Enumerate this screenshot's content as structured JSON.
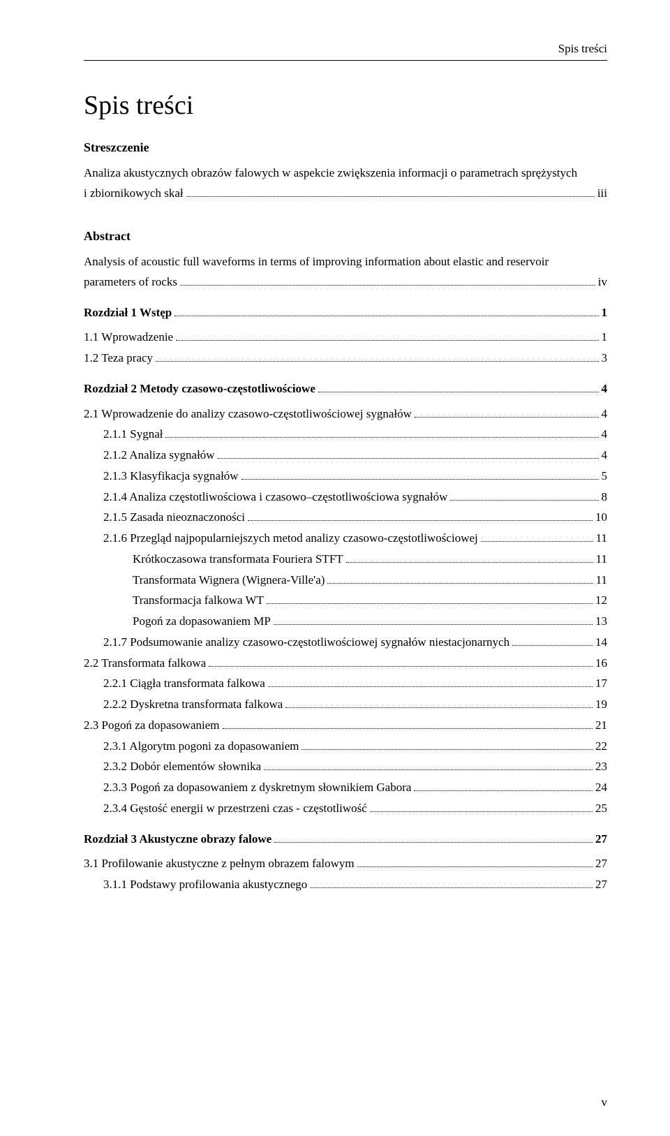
{
  "running_header": "Spis treści",
  "title": "Spis treści",
  "blocks": [
    {
      "type": "head",
      "text": "Streszczenie"
    },
    {
      "type": "para",
      "text": "Analiza akustycznych obrazów falowych w aspekcie zwiększenia informacji o parametrach sprężystych"
    },
    {
      "type": "toc",
      "indent": 0,
      "label": "i zbiornikowych skał",
      "page": "iii",
      "bold": false
    },
    {
      "type": "gap",
      "size": "med"
    },
    {
      "type": "head",
      "text": "Abstract"
    },
    {
      "type": "para",
      "text": "Analysis of acoustic full waveforms in terms of improving information about elastic and reservoir"
    },
    {
      "type": "toc",
      "indent": 0,
      "label": "parameters of rocks",
      "page": "iv",
      "bold": false
    },
    {
      "type": "gap",
      "size": "med"
    },
    {
      "type": "toc",
      "indent": 0,
      "label": "Rozdział 1 Wstęp",
      "page": "1",
      "bold": true
    },
    {
      "type": "gap",
      "size": "small"
    },
    {
      "type": "toc",
      "indent": 1,
      "label": "1.1  Wprowadzenie",
      "page": "1",
      "bold": false
    },
    {
      "type": "toc",
      "indent": 1,
      "label": "1.2  Teza pracy",
      "page": "3",
      "bold": false
    },
    {
      "type": "gap",
      "size": "med"
    },
    {
      "type": "toc",
      "indent": 0,
      "label": "Rozdział 2 Metody czasowo-częstotliwościowe",
      "page": "4",
      "bold": true
    },
    {
      "type": "gap",
      "size": "small"
    },
    {
      "type": "toc",
      "indent": 1,
      "label": "2.1  Wprowadzenie do analizy czasowo-częstotliwościowej sygnałów",
      "page": "4",
      "bold": false
    },
    {
      "type": "toc",
      "indent": 2,
      "label": "2.1.1  Sygnał",
      "page": "4",
      "bold": false
    },
    {
      "type": "toc",
      "indent": 2,
      "label": "2.1.2  Analiza sygnałów",
      "page": "4",
      "bold": false
    },
    {
      "type": "toc",
      "indent": 2,
      "label": "2.1.3  Klasyfikacja sygnałów",
      "page": "5",
      "bold": false
    },
    {
      "type": "toc",
      "indent": 2,
      "label": "2.1.4  Analiza częstotliwościowa i czasowo–częstotliwościowa sygnałów",
      "page": "8",
      "bold": false
    },
    {
      "type": "toc",
      "indent": 2,
      "label": "2.1.5  Zasada nieoznaczoności",
      "page": "10",
      "bold": false
    },
    {
      "type": "toc",
      "indent": 2,
      "label": "2.1.6  Przegląd najpopularniejszych metod analizy czasowo-częstotliwościowej",
      "page": "11",
      "bold": false
    },
    {
      "type": "toc",
      "indent": 3,
      "label": "Krótkoczasowa transformata Fouriera STFT",
      "page": "11",
      "bold": false
    },
    {
      "type": "toc",
      "indent": 3,
      "label": "Transformata Wignera (Wignera-Ville'a)",
      "page": "11",
      "bold": false
    },
    {
      "type": "toc",
      "indent": 3,
      "label": "Transformacja falkowa WT",
      "page": "12",
      "bold": false
    },
    {
      "type": "toc",
      "indent": 3,
      "label": "Pogoń za dopasowaniem MP",
      "page": "13",
      "bold": false
    },
    {
      "type": "toc",
      "indent": 2,
      "label": "2.1.7  Podsumowanie analizy czasowo-częstotliwościowej sygnałów niestacjonarnych",
      "page": "14",
      "bold": false
    },
    {
      "type": "toc",
      "indent": 1,
      "label": "2.2  Transformata falkowa",
      "page": "16",
      "bold": false
    },
    {
      "type": "toc",
      "indent": 2,
      "label": "2.2.1  Ciągła transformata falkowa",
      "page": "17",
      "bold": false
    },
    {
      "type": "toc",
      "indent": 2,
      "label": "2.2.2  Dyskretna transformata falkowa",
      "page": "19",
      "bold": false
    },
    {
      "type": "toc",
      "indent": 1,
      "label": "2.3  Pogoń za dopasowaniem",
      "page": "21",
      "bold": false
    },
    {
      "type": "toc",
      "indent": 2,
      "label": "2.3.1  Algorytm pogoni za dopasowaniem",
      "page": "22",
      "bold": false
    },
    {
      "type": "toc",
      "indent": 2,
      "label": "2.3.2  Dobór elementów słownika",
      "page": "23",
      "bold": false
    },
    {
      "type": "toc",
      "indent": 2,
      "label": "2.3.3  Pogoń za dopasowaniem z dyskretnym słownikiem Gabora",
      "page": "24",
      "bold": false
    },
    {
      "type": "toc",
      "indent": 2,
      "label": "2.3.4  Gęstość energii w przestrzeni czas - częstotliwość",
      "page": "25",
      "bold": false
    },
    {
      "type": "gap",
      "size": "med"
    },
    {
      "type": "toc",
      "indent": 0,
      "label": "Rozdział 3 Akustyczne obrazy falowe",
      "page": "27",
      "bold": true
    },
    {
      "type": "gap",
      "size": "small"
    },
    {
      "type": "toc",
      "indent": 1,
      "label": "3.1  Profilowanie akustyczne z pełnym obrazem falowym",
      "page": "27",
      "bold": false
    },
    {
      "type": "toc",
      "indent": 2,
      "label": "3.1.1  Podstawy profilowania akustycznego",
      "page": "27",
      "bold": false
    }
  ],
  "footer_page": "v",
  "colors": {
    "text": "#000000",
    "background": "#ffffff"
  },
  "fontsizes": {
    "title": 38,
    "body": 17,
    "head": 18
  }
}
